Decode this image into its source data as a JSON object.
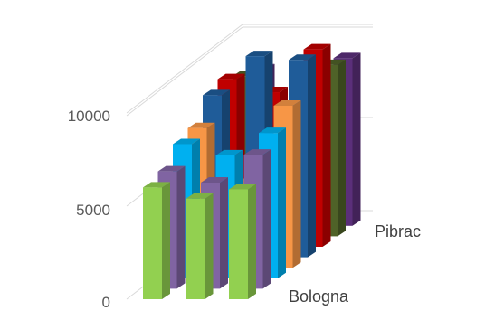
{
  "chart_data": {
    "type": "bar",
    "subtype": "3d-clustered-bar",
    "title": "",
    "xlabel": "",
    "ylabel": "",
    "ylim": [
      0,
      15000
    ],
    "yticks": [
      "0",
      "5000",
      "10000"
    ],
    "grid": true,
    "legend": "none",
    "depth_categories": [
      "Bologna",
      "",
      "Pibrac"
    ],
    "x_slots": 3,
    "series": [
      {
        "color": "#92d050",
        "values": [
          6000,
          5400,
          5900
        ]
      },
      {
        "color": "#8064a2",
        "values": [
          6300,
          5700,
          7200
        ]
      },
      {
        "color": "#00b0f0",
        "values": [
          7200,
          6600,
          7800
        ]
      },
      {
        "color": "#f79646",
        "values": [
          7500,
          4500,
          8700
        ]
      },
      {
        "color": "#1f5c99",
        "values": [
          8700,
          10800,
          10600
        ]
      },
      {
        "color": "#c00000",
        "values": [
          9000,
          8300,
          10600
        ]
      },
      {
        "color": "#4f6228",
        "values": [
          8600,
          6200,
          9200
        ]
      },
      {
        "color": "#5b2f7a",
        "values": [
          8400,
          6000,
          9000
        ]
      }
    ]
  }
}
